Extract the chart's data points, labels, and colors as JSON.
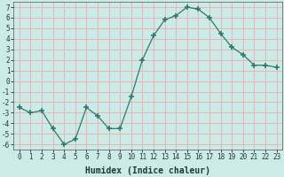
{
  "x": [
    0,
    1,
    2,
    3,
    4,
    5,
    6,
    7,
    8,
    9,
    10,
    11,
    12,
    13,
    14,
    15,
    16,
    17,
    18,
    19,
    20,
    21,
    22,
    23
  ],
  "y": [
    -2.5,
    -3.0,
    -2.8,
    -4.5,
    -6.0,
    -5.5,
    -2.5,
    -3.3,
    -4.5,
    -4.5,
    -1.5,
    2.0,
    4.3,
    5.8,
    6.2,
    7.0,
    6.8,
    6.0,
    4.5,
    3.2,
    2.5,
    1.5,
    1.5,
    1.3
  ],
  "line_color": "#2d7a6e",
  "marker": "+",
  "marker_size": 4,
  "marker_lw": 1.2,
  "bg_color": "#cceae6",
  "grid_color": "#e8b4b4",
  "xlabel": "Humidex (Indice chaleur)",
  "xlim": [
    -0.5,
    23.5
  ],
  "ylim": [
    -6.5,
    7.5
  ],
  "yticks": [
    -6,
    -5,
    -4,
    -3,
    -2,
    -1,
    0,
    1,
    2,
    3,
    4,
    5,
    6,
    7
  ],
  "xticks": [
    0,
    1,
    2,
    3,
    4,
    5,
    6,
    7,
    8,
    9,
    10,
    11,
    12,
    13,
    14,
    15,
    16,
    17,
    18,
    19,
    20,
    21,
    22,
    23
  ],
  "tick_fontsize": 5.5,
  "xlabel_fontsize": 7.0
}
